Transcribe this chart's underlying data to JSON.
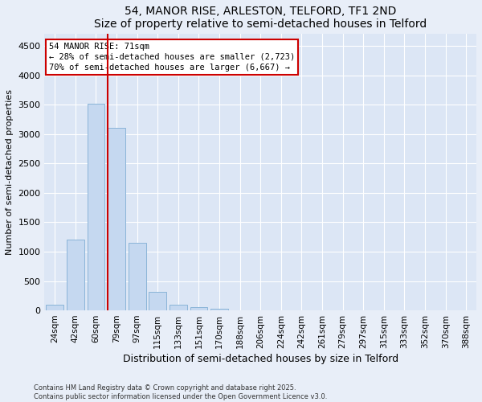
{
  "title1": "54, MANOR RISE, ARLESTON, TELFORD, TF1 2ND",
  "title2": "Size of property relative to semi-detached houses in Telford",
  "xlabel": "Distribution of semi-detached houses by size in Telford",
  "ylabel": "Number of semi-detached properties",
  "categories": [
    "24sqm",
    "42sqm",
    "60sqm",
    "79sqm",
    "97sqm",
    "115sqm",
    "133sqm",
    "151sqm",
    "170sqm",
    "188sqm",
    "206sqm",
    "224sqm",
    "242sqm",
    "261sqm",
    "279sqm",
    "297sqm",
    "315sqm",
    "333sqm",
    "352sqm",
    "370sqm",
    "388sqm"
  ],
  "values": [
    100,
    1200,
    3520,
    3100,
    1150,
    310,
    100,
    55,
    30,
    5,
    3,
    1,
    1,
    0,
    0,
    0,
    0,
    0,
    0,
    0,
    0
  ],
  "bar_color": "#c5d8f0",
  "bar_edge_color": "#8ab4d8",
  "ylim": [
    0,
    4700
  ],
  "yticks": [
    0,
    500,
    1000,
    1500,
    2000,
    2500,
    3000,
    3500,
    4000,
    4500
  ],
  "property_line_color": "#cc0000",
  "annotation_title": "54 MANOR RISE: 71sqm",
  "annotation_line1": "← 28% of semi-detached houses are smaller (2,723)",
  "annotation_line2": "70% of semi-detached houses are larger (6,667) →",
  "annotation_box_color": "#cc0000",
  "footnote1": "Contains HM Land Registry data © Crown copyright and database right 2025.",
  "footnote2": "Contains public sector information licensed under the Open Government Licence v3.0.",
  "background_color": "#e8eef8",
  "plot_bg_color": "#dce6f5"
}
